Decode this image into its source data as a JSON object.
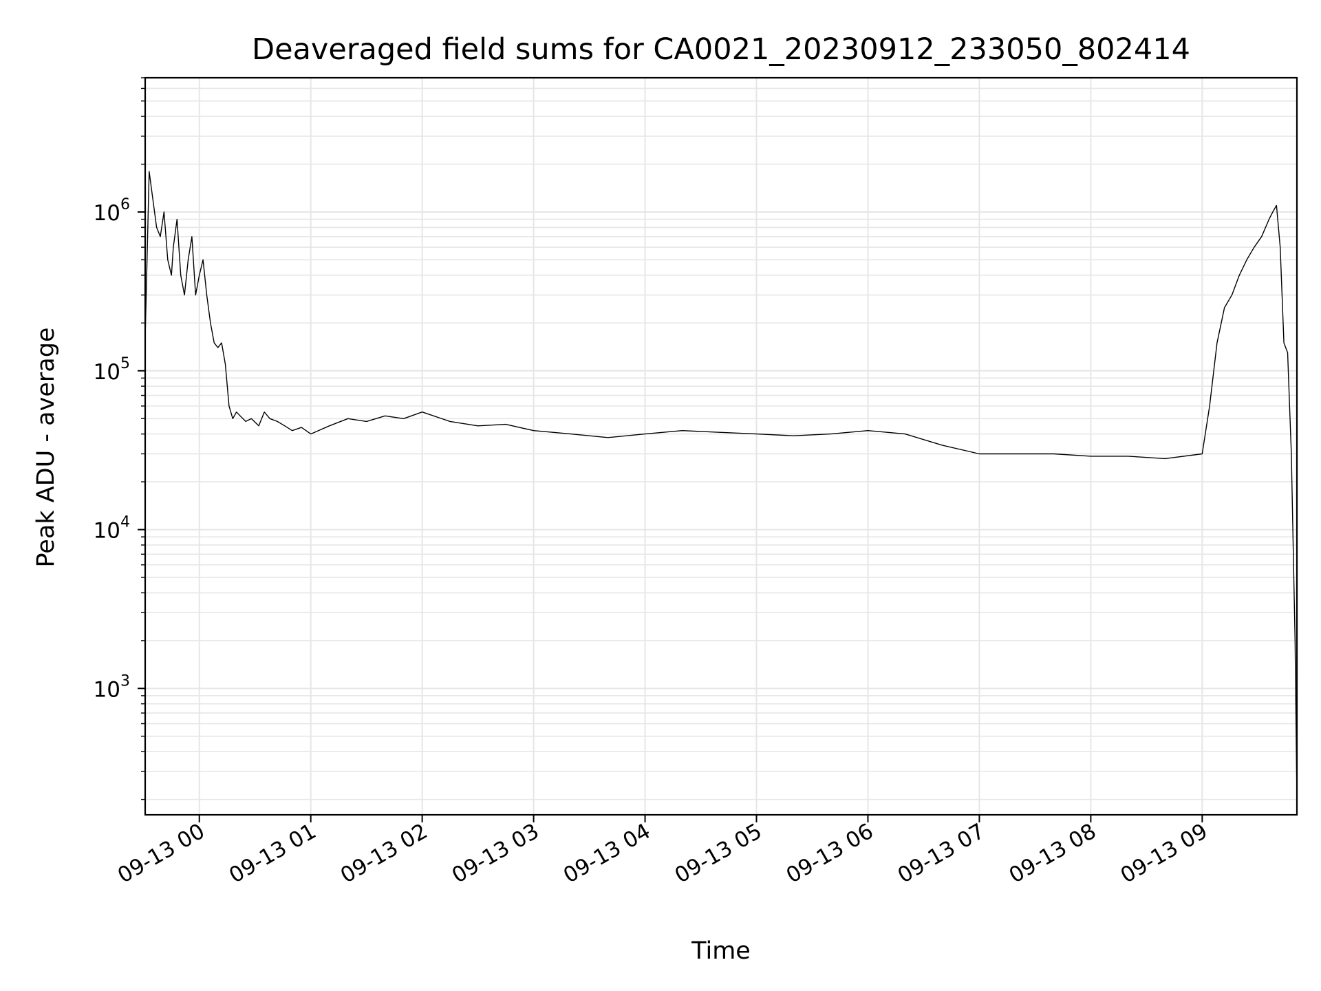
{
  "chart_data": {
    "type": "line",
    "title": "Deaveraged field sums for CA0021_20230912_233050_802414",
    "xlabel": "Time",
    "ylabel": "Peak ADU - average",
    "y_scale": "log",
    "ylim": [
      160,
      7000000
    ],
    "xlim": [
      "2023-09-12 23:30:50",
      "2023-09-13 09:51:00"
    ],
    "grid": true,
    "line_color": "#000000",
    "x_ticks": [
      {
        "t": "2023-09-13 00:00",
        "label": "09-13 00"
      },
      {
        "t": "2023-09-13 01:00",
        "label": "09-13 01"
      },
      {
        "t": "2023-09-13 02:00",
        "label": "09-13 02"
      },
      {
        "t": "2023-09-13 03:00",
        "label": "09-13 03"
      },
      {
        "t": "2023-09-13 04:00",
        "label": "09-13 04"
      },
      {
        "t": "2023-09-13 05:00",
        "label": "09-13 05"
      },
      {
        "t": "2023-09-13 06:00",
        "label": "09-13 06"
      },
      {
        "t": "2023-09-13 07:00",
        "label": "09-13 07"
      },
      {
        "t": "2023-09-13 08:00",
        "label": "09-13 08"
      },
      {
        "t": "2023-09-13 09:00",
        "label": "09-13 09"
      }
    ],
    "y_ticks": [
      {
        "value": 1000,
        "base": "10",
        "exp": "3"
      },
      {
        "value": 10000,
        "base": "10",
        "exp": "4"
      },
      {
        "value": 100000,
        "base": "10",
        "exp": "5"
      },
      {
        "value": 1000000,
        "base": "10",
        "exp": "6"
      }
    ],
    "series": [
      {
        "x": [
          "2023-09-12 23:30:50",
          "2023-09-12 23:33",
          "2023-09-12 23:35",
          "2023-09-12 23:37",
          "2023-09-12 23:39",
          "2023-09-12 23:41",
          "2023-09-12 23:43",
          "2023-09-12 23:45",
          "2023-09-12 23:46",
          "2023-09-12 23:48",
          "2023-09-12 23:50",
          "2023-09-12 23:52",
          "2023-09-12 23:54",
          "2023-09-12 23:56",
          "2023-09-12 23:58",
          "2023-09-13 00:00",
          "2023-09-13 00:02",
          "2023-09-13 00:04",
          "2023-09-13 00:06",
          "2023-09-13 00:08",
          "2023-09-13 00:10",
          "2023-09-13 00:12",
          "2023-09-13 00:14",
          "2023-09-13 00:16",
          "2023-09-13 00:18",
          "2023-09-13 00:20",
          "2023-09-13 00:22",
          "2023-09-13 00:25",
          "2023-09-13 00:28",
          "2023-09-13 00:32",
          "2023-09-13 00:35",
          "2023-09-13 00:38",
          "2023-09-13 00:42",
          "2023-09-13 00:46",
          "2023-09-13 00:50",
          "2023-09-13 00:55",
          "2023-09-13 01:00",
          "2023-09-13 01:10",
          "2023-09-13 01:20",
          "2023-09-13 01:30",
          "2023-09-13 01:40",
          "2023-09-13 01:50",
          "2023-09-13 02:00",
          "2023-09-13 02:15",
          "2023-09-13 02:30",
          "2023-09-13 02:45",
          "2023-09-13 03:00",
          "2023-09-13 03:20",
          "2023-09-13 03:40",
          "2023-09-13 04:00",
          "2023-09-13 04:20",
          "2023-09-13 04:40",
          "2023-09-13 05:00",
          "2023-09-13 05:20",
          "2023-09-13 05:40",
          "2023-09-13 06:00",
          "2023-09-13 06:20",
          "2023-09-13 06:40",
          "2023-09-13 07:00",
          "2023-09-13 07:20",
          "2023-09-13 07:40",
          "2023-09-13 08:00",
          "2023-09-13 08:20",
          "2023-09-13 08:40",
          "2023-09-13 09:00",
          "2023-09-13 09:04",
          "2023-09-13 09:08",
          "2023-09-13 09:12",
          "2023-09-13 09:16",
          "2023-09-13 09:20",
          "2023-09-13 09:24",
          "2023-09-13 09:28",
          "2023-09-13 09:32",
          "2023-09-13 09:36",
          "2023-09-13 09:38",
          "2023-09-13 09:40",
          "2023-09-13 09:42",
          "2023-09-13 09:44",
          "2023-09-13 09:46",
          "2023-09-13 09:48",
          "2023-09-13 09:50",
          "2023-09-13 09:51"
        ],
        "y": [
          160000,
          1800000,
          1200000,
          800000,
          700000,
          1000000,
          500000,
          400000,
          600000,
          900000,
          400000,
          300000,
          500000,
          700000,
          300000,
          400000,
          500000,
          300000,
          200000,
          150000,
          140000,
          150000,
          110000,
          60000,
          50000,
          55000,
          52000,
          48000,
          50000,
          45000,
          55000,
          50000,
          48000,
          45000,
          42000,
          44000,
          40000,
          45000,
          50000,
          48000,
          52000,
          50000,
          55000,
          48000,
          45000,
          46000,
          42000,
          40000,
          38000,
          40000,
          42000,
          41000,
          40000,
          39000,
          40000,
          42000,
          40000,
          34000,
          30000,
          30000,
          30000,
          29000,
          29000,
          28000,
          30000,
          60000,
          150000,
          250000,
          300000,
          400000,
          500000,
          600000,
          700000,
          900000,
          1000000,
          1100000,
          600000,
          150000,
          130000,
          30000,
          2000,
          200
        ]
      }
    ]
  }
}
